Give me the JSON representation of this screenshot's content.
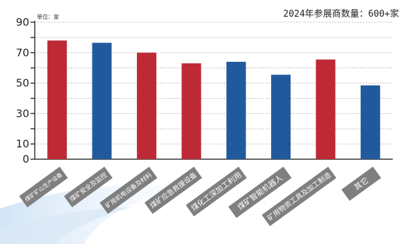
{
  "header": {
    "note": "2024年参展商数量：600+家"
  },
  "colors": {
    "red": "#bd2a35",
    "blue": "#215a9c",
    "label_box": "#7f7f7f",
    "axis": "#333333",
    "grid": "#bdbdbd"
  },
  "chart_data": {
    "type": "bar",
    "title": "",
    "xlabel": "",
    "ylabel": "单位：家",
    "ylim": [
      0,
      90
    ],
    "yticks": [
      0,
      10,
      20,
      30,
      40,
      50,
      60,
      70,
      80,
      90
    ],
    "ytick_labels": [
      "0",
      "10",
      "20",
      "30",
      "40",
      "50",
      "60",
      "70",
      "80",
      "90"
    ],
    "grid": true,
    "categories": [
      "煤矿矿山生产设备",
      "煤矿安全及监控",
      "矿用机电设备及材料",
      "煤矿应急救援设备",
      "煤化工深加工利用",
      "煤矿智能机器人",
      "矿用物资工具及加工制造",
      "其它"
    ],
    "values": [
      78,
      76.5,
      70,
      63,
      64,
      55.5,
      65.5,
      48.5
    ],
    "bar_colors": [
      "red",
      "blue",
      "red",
      "red",
      "blue",
      "blue",
      "red",
      "blue"
    ]
  }
}
